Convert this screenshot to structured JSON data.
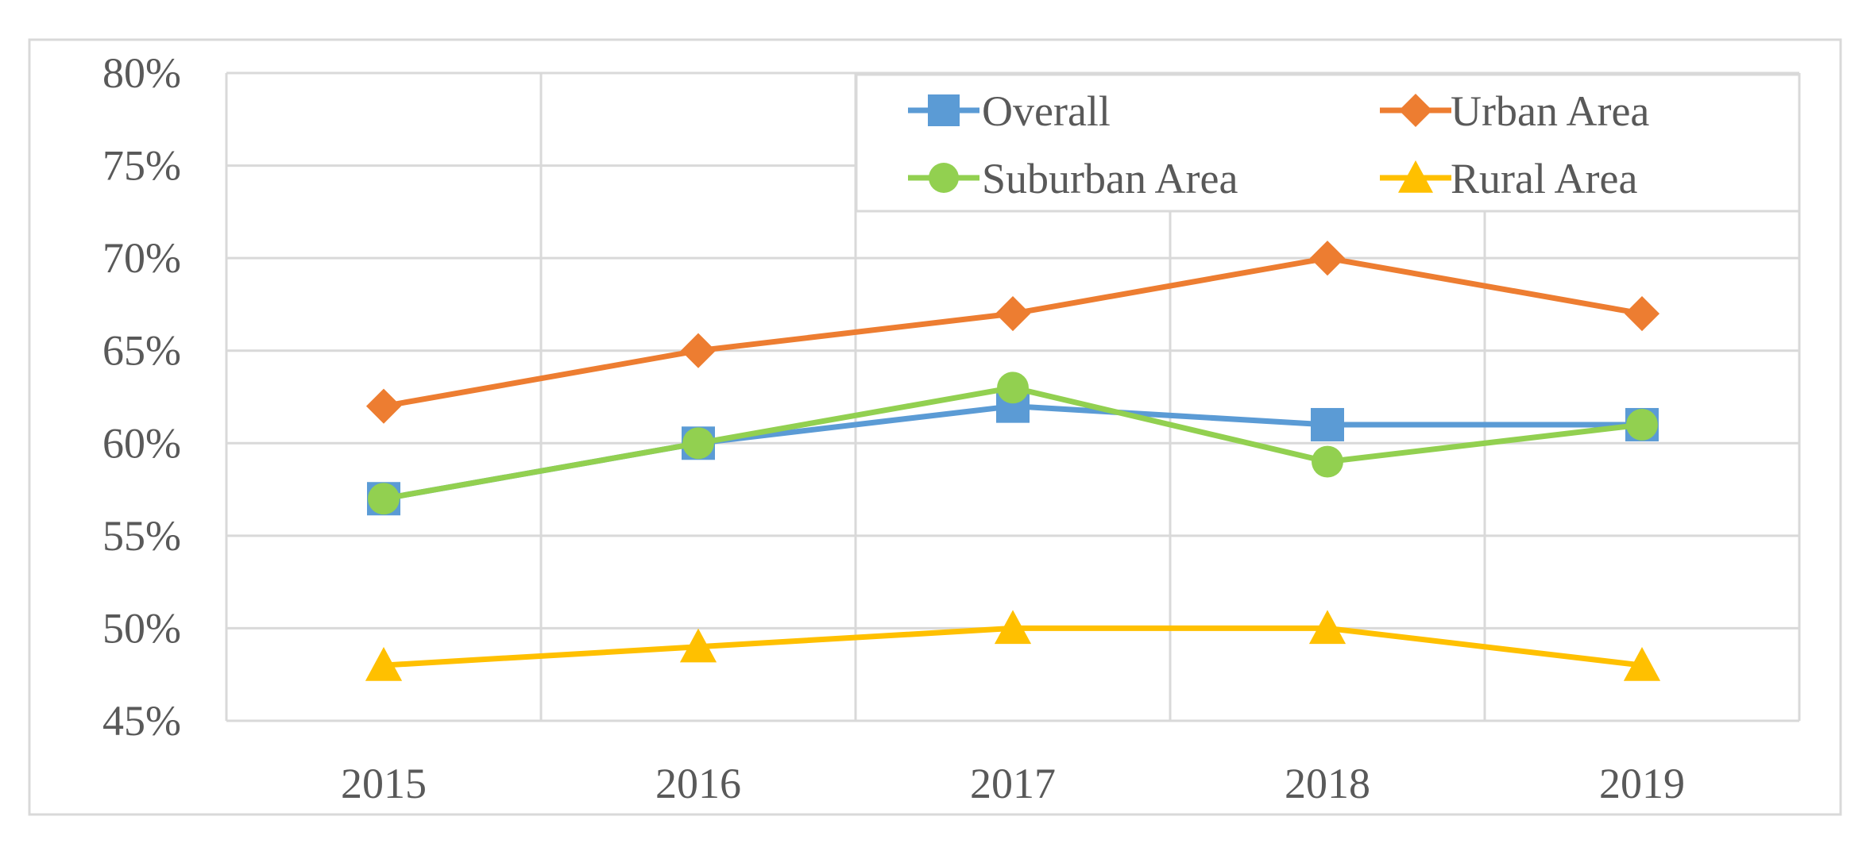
{
  "chart_data": {
    "type": "line",
    "title": "",
    "xlabel": "",
    "ylabel": "",
    "categories": [
      "2015",
      "2016",
      "2017",
      "2018",
      "2019"
    ],
    "ylim": [
      0.45,
      0.8
    ],
    "yticks": [
      0.45,
      0.5,
      0.55,
      0.6,
      0.65,
      0.7,
      0.75,
      0.8
    ],
    "ytick_labels": [
      "45%",
      "50%",
      "55%",
      "60%",
      "65%",
      "70%",
      "75%",
      "80%"
    ],
    "grid": true,
    "legend_position": "top-right",
    "series": [
      {
        "name": "Overall",
        "color": "#5b9bd5",
        "marker": "square",
        "values": [
          0.57,
          0.6,
          0.62,
          0.61,
          0.61
        ]
      },
      {
        "name": "Urban Area",
        "color": "#ed7d31",
        "marker": "diamond",
        "values": [
          0.62,
          0.65,
          0.67,
          0.7,
          0.67
        ]
      },
      {
        "name": "Suburban Area",
        "color": "#92d050",
        "marker": "circle",
        "values": [
          0.57,
          0.6,
          0.63,
          0.59,
          0.61
        ]
      },
      {
        "name": "Rural Area",
        "color": "#ffc000",
        "marker": "triangle",
        "values": [
          0.48,
          0.49,
          0.5,
          0.5,
          0.48
        ]
      }
    ]
  }
}
